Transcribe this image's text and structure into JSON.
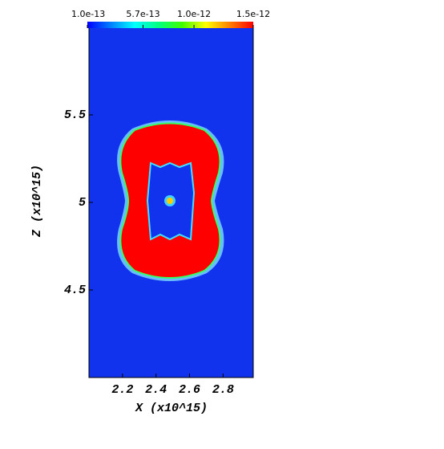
{
  "chart_data": {
    "type": "heatmap",
    "x_label": "X (x10^15)",
    "y_label": "Z (x10^15)",
    "xlim": [
      2.0,
      2.98
    ],
    "xticks": [
      2.2,
      2.4,
      2.6,
      2.8
    ],
    "ylim": [
      4.0,
      6.0
    ],
    "yticks": [
      4.5,
      5.0,
      5.5
    ],
    "colorbar": {
      "lim": [
        1e-13,
        1.5e-12
      ],
      "ticks": [
        {
          "value": 1e-13,
          "label": "1.0e-13"
        },
        {
          "value": 5.7e-13,
          "label": "5.7e-13"
        },
        {
          "value": 1e-12,
          "label": "1.0e-12"
        },
        {
          "value": 1.5e-12,
          "label": "1.5e-12"
        }
      ],
      "colors": [
        "#0000ff",
        "#0080ff",
        "#00ffff",
        "#00ff80",
        "#40ff00",
        "#ffff00",
        "#ff8000",
        "#ff0000"
      ]
    },
    "background_color": "#1133ee"
  }
}
